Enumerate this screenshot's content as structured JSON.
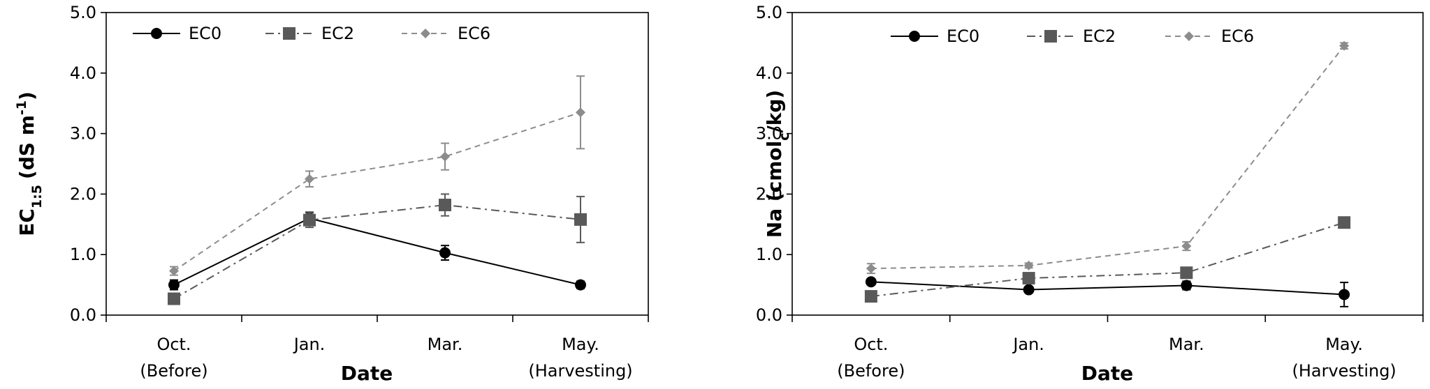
{
  "chart_data": [
    {
      "type": "line",
      "categories": [
        [
          "Oct.",
          "(Before)"
        ],
        [
          "Jan."
        ],
        [
          "Mar."
        ],
        [
          "May.",
          "(Harvesting)"
        ]
      ],
      "xlabel": "Date",
      "ylabel": {
        "main": "EC",
        "sub": "1:5",
        "unit_open": "(dS m",
        "sup": "-1",
        "unit_close": ")"
      },
      "ylim": [
        0,
        5
      ],
      "yticks": [
        "0.0",
        "1.0",
        "2.0",
        "3.0",
        "4.0",
        "5.0"
      ],
      "legend_position": "top",
      "series": [
        {
          "name": "EC0",
          "values": [
            0.5,
            1.6,
            1.03,
            0.5
          ],
          "errors": [
            0.08,
            0.1,
            0.12,
            0.06
          ],
          "color": "#000000",
          "marker": "circle",
          "dash": ""
        },
        {
          "name": "EC2",
          "values": [
            0.27,
            1.57,
            1.82,
            1.58
          ],
          "errors": [
            0.05,
            0.12,
            0.18,
            0.38
          ],
          "color": "#595959",
          "marker": "square",
          "dash": "12 6 3 6"
        },
        {
          "name": "EC6",
          "values": [
            0.73,
            2.25,
            2.62,
            3.35
          ],
          "errors": [
            0.07,
            0.13,
            0.22,
            0.6
          ],
          "color": "#8c8c8c",
          "marker": "diamond",
          "dash": "8 6"
        }
      ]
    },
    {
      "type": "line",
      "categories": [
        [
          "Oct.",
          "(Before)"
        ],
        [
          "Jan."
        ],
        [
          "Mar."
        ],
        [
          "May.",
          "(Harvesting)"
        ]
      ],
      "xlabel": "Date",
      "ylabel": {
        "main": "Na (cmol",
        "sub": "c",
        "unit_close": "/kg)"
      },
      "ylim": [
        0,
        5
      ],
      "yticks": [
        "0.0",
        "1.0",
        "2.0",
        "3.0",
        "4.0",
        "5.0"
      ],
      "legend_position": "top",
      "series": [
        {
          "name": "EC0",
          "values": [
            0.55,
            0.42,
            0.49,
            0.34
          ],
          "errors": [
            0.05,
            0.04,
            0.07,
            0.2
          ],
          "color": "#000000",
          "marker": "circle",
          "dash": ""
        },
        {
          "name": "EC2",
          "values": [
            0.31,
            0.61,
            0.7,
            1.53
          ],
          "errors": [
            0.04,
            0.05,
            0.06,
            0.08
          ],
          "color": "#595959",
          "marker": "square",
          "dash": "12 6 3 6"
        },
        {
          "name": "EC6",
          "values": [
            0.77,
            0.82,
            1.14,
            4.45
          ],
          "errors": [
            0.08,
            0.04,
            0.07,
            0.05
          ],
          "color": "#8c8c8c",
          "marker": "diamond",
          "dash": "8 6"
        }
      ]
    }
  ]
}
